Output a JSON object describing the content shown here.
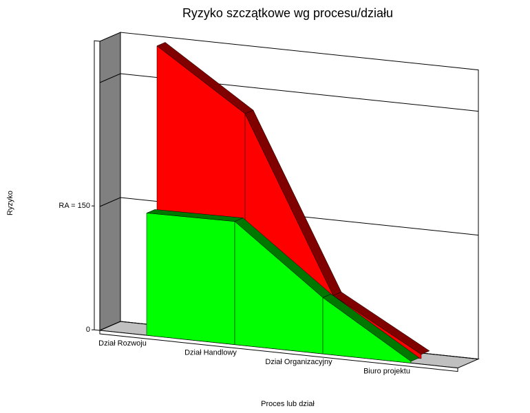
{
  "chart_data": {
    "type": "area3d",
    "title": "Ryzyko szczątkowe wg procesu/działu",
    "x_label": "Proces lub dział",
    "y_label": "Ryzyko",
    "categories": [
      "Dział Rozwoju",
      "Dział Handlowy",
      "Dział Organizacyjny",
      "Biuro projektu"
    ],
    "series": [
      {
        "color": "#ff0000",
        "edge_color": "#800000",
        "values": [
          345,
          274,
          65,
          5
        ]
      },
      {
        "color": "#00ff00",
        "edge_color": "#007800",
        "values": [
          148,
          149,
          68,
          2
        ]
      }
    ],
    "ylim": [
      0,
      350
    ],
    "yticks": [
      0,
      {
        "value": 150,
        "label": "RA = 150"
      }
    ],
    "gridlines": [
      0,
      150,
      300
    ],
    "grid": true
  }
}
